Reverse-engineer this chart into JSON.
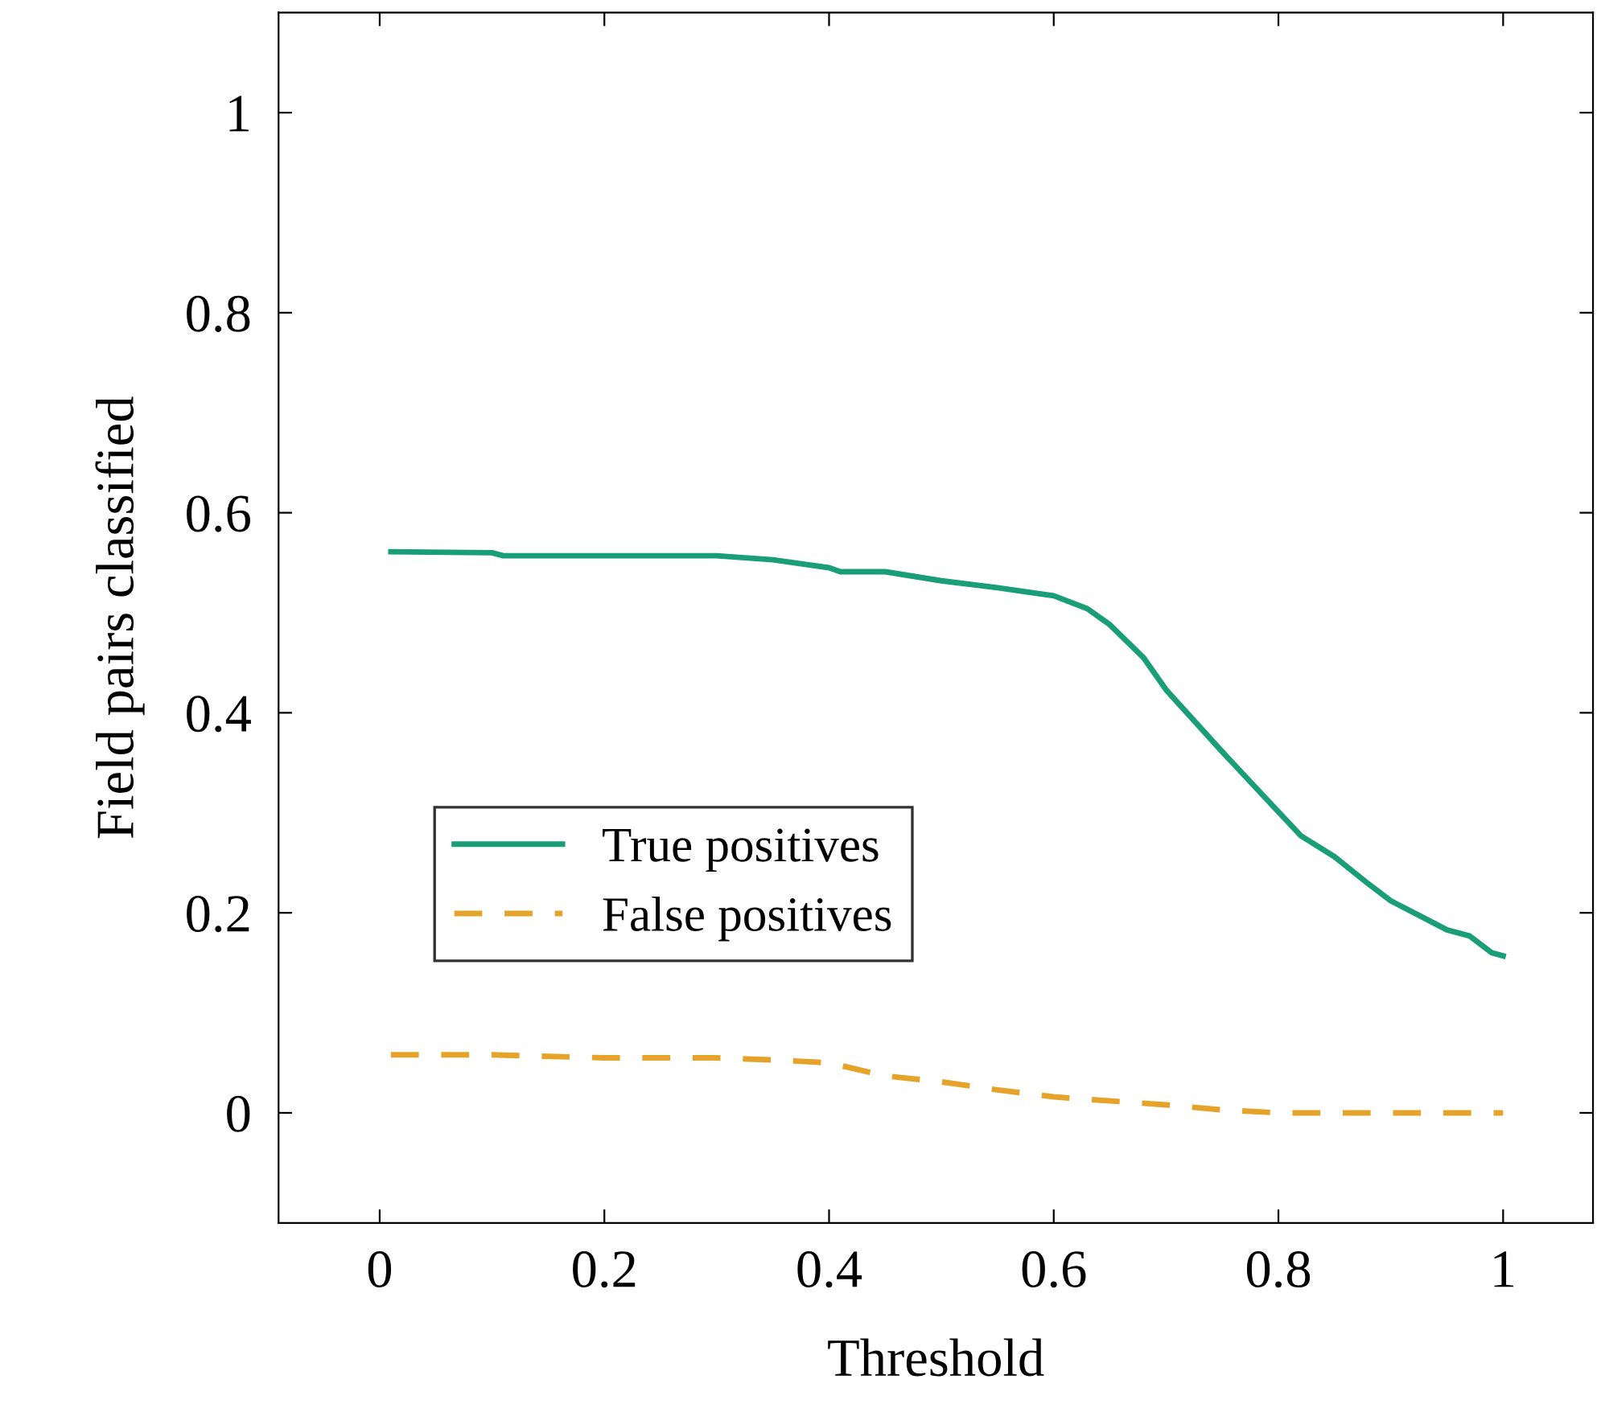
{
  "chart_data": {
    "type": "line",
    "xlabel": "Threshold",
    "ylabel": "Field pairs classified",
    "xlim": [
      -0.09,
      1.08
    ],
    "ylim": [
      -0.11,
      1.1
    ],
    "xticks": [
      0,
      0.2,
      0.4,
      0.6,
      0.8,
      1
    ],
    "yticks": [
      0,
      0.2,
      0.4,
      0.6,
      0.8,
      1
    ],
    "grid": false,
    "legend": "left",
    "marker": "none",
    "series": [
      {
        "name": "True positives",
        "color": "#1a9e77",
        "line_style": "solid",
        "x": [
          0.01,
          0.1,
          0.11,
          0.3,
          0.35,
          0.4,
          0.41,
          0.45,
          0.5,
          0.55,
          0.6,
          0.63,
          0.65,
          0.68,
          0.7,
          0.75,
          0.8,
          0.82,
          0.85,
          0.88,
          0.9,
          0.95,
          0.97,
          0.99,
          1.0
        ],
        "values": [
          0.561,
          0.56,
          0.557,
          0.557,
          0.553,
          0.545,
          0.541,
          0.541,
          0.532,
          0.525,
          0.517,
          0.504,
          0.488,
          0.455,
          0.423,
          0.361,
          0.301,
          0.277,
          0.256,
          0.229,
          0.212,
          0.183,
          0.177,
          0.16,
          0.157
        ]
      },
      {
        "name": "False positives",
        "color": "#e6a32a",
        "line_style": "dashed",
        "x": [
          0.01,
          0.1,
          0.2,
          0.3,
          0.35,
          0.4,
          0.45,
          0.5,
          0.55,
          0.6,
          0.7,
          0.75,
          0.8,
          0.9,
          1.0
        ],
        "values": [
          0.058,
          0.058,
          0.055,
          0.055,
          0.053,
          0.05,
          0.037,
          0.031,
          0.023,
          0.016,
          0.008,
          0.003,
          0.0,
          0.0,
          0.0
        ]
      }
    ]
  }
}
